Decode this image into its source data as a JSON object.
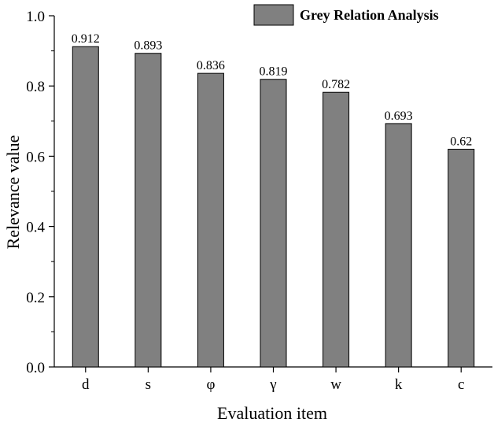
{
  "chart_data": {
    "type": "bar",
    "categories": [
      "d",
      "s",
      "φ",
      "γ",
      "w",
      "k",
      "c"
    ],
    "series": [
      {
        "name": "Grey Relation Analysis",
        "values": [
          0.912,
          0.893,
          0.836,
          0.819,
          0.782,
          0.693,
          0.62
        ]
      }
    ],
    "data_labels": [
      "0.912",
      "0.893",
      "0.836",
      "0.819",
      "0.782",
      "0.693",
      "0.62"
    ],
    "xlabel": "Evaluation item",
    "ylabel": "Relevance value",
    "ylim": [
      0,
      1.0
    ],
    "yticks": [
      0.0,
      0.2,
      0.4,
      0.6,
      0.8,
      1.0
    ],
    "ytick_labels": [
      "0.0",
      "0.2",
      "0.4",
      "0.6",
      "0.8",
      "1.0"
    ],
    "grid": false,
    "legend_position": "top-right",
    "bar_color": "#808080",
    "bar_edge_color": "#000000"
  }
}
